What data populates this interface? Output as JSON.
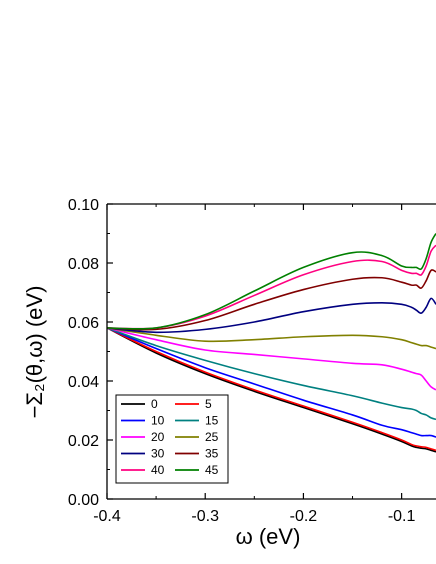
{
  "chart_data": {
    "type": "line",
    "title": "",
    "xlabel": "ω (eV)",
    "ylabel": "−Σ₂(θ,ω) (eV)",
    "xlim": [
      -0.4,
      -0.065
    ],
    "ylim": [
      0.0,
      0.1
    ],
    "xticks": [
      -0.4,
      -0.3,
      -0.2,
      -0.1
    ],
    "xtick_labels": [
      "-0.4",
      "-0.3",
      "-0.2",
      "-0.1"
    ],
    "yticks": [
      0.0,
      0.02,
      0.04,
      0.06,
      0.08,
      0.1
    ],
    "ytick_labels": [
      "0.00",
      "0.02",
      "0.04",
      "0.06",
      "0.08",
      "0.10"
    ],
    "grid": false,
    "legend_position": "bottom-left",
    "x": [
      -0.4,
      -0.35,
      -0.3,
      -0.25,
      -0.2,
      -0.15,
      -0.12,
      -0.1,
      -0.09,
      -0.085,
      -0.08,
      -0.075,
      -0.07,
      -0.065
    ],
    "series": [
      {
        "name": "0",
        "color": "#000000",
        "values": [
          0.058,
          0.0495,
          0.0425,
          0.0365,
          0.031,
          0.0255,
          0.022,
          0.0195,
          0.018,
          0.0175,
          0.0172,
          0.017,
          0.0165,
          0.016
        ]
      },
      {
        "name": "5",
        "color": "#ff0000",
        "values": [
          0.058,
          0.05,
          0.043,
          0.037,
          0.0315,
          0.026,
          0.0225,
          0.02,
          0.0185,
          0.018,
          0.0177,
          0.0175,
          0.017,
          0.0165
        ]
      },
      {
        "name": "10",
        "color": "#0000ff",
        "values": [
          0.058,
          0.051,
          0.0445,
          0.039,
          0.0335,
          0.0285,
          0.025,
          0.0235,
          0.0225,
          0.022,
          0.0215,
          0.0215,
          0.0215,
          0.021
        ]
      },
      {
        "name": "15",
        "color": "#008080",
        "values": [
          0.058,
          0.052,
          0.047,
          0.0425,
          0.0385,
          0.035,
          0.0325,
          0.031,
          0.0305,
          0.03,
          0.029,
          0.0285,
          0.0275,
          0.027
        ]
      },
      {
        "name": "20",
        "color": "#ff00ff",
        "values": [
          0.058,
          0.054,
          0.0505,
          0.049,
          0.0475,
          0.046,
          0.0455,
          0.044,
          0.043,
          0.0425,
          0.042,
          0.04,
          0.038,
          0.037
        ]
      },
      {
        "name": "25",
        "color": "#808000",
        "values": [
          0.058,
          0.0555,
          0.0535,
          0.054,
          0.055,
          0.0555,
          0.055,
          0.054,
          0.053,
          0.0525,
          0.052,
          0.052,
          0.0515,
          0.051
        ]
      },
      {
        "name": "30",
        "color": "#000080",
        "values": [
          0.058,
          0.0565,
          0.0575,
          0.06,
          0.0635,
          0.066,
          0.0665,
          0.066,
          0.065,
          0.064,
          0.063,
          0.065,
          0.068,
          0.066
        ]
      },
      {
        "name": "35",
        "color": "#800000",
        "values": [
          0.058,
          0.0575,
          0.0605,
          0.066,
          0.071,
          0.0745,
          0.075,
          0.0735,
          0.0725,
          0.0725,
          0.0715,
          0.074,
          0.0775,
          0.077
        ]
      },
      {
        "name": "40",
        "color": "#ff0080",
        "values": [
          0.058,
          0.058,
          0.062,
          0.069,
          0.076,
          0.0805,
          0.0805,
          0.0775,
          0.0765,
          0.0765,
          0.076,
          0.079,
          0.084,
          0.086
        ]
      },
      {
        "name": "45",
        "color": "#008000",
        "values": [
          0.058,
          0.058,
          0.0625,
          0.0705,
          0.0785,
          0.0835,
          0.0825,
          0.079,
          0.0785,
          0.0785,
          0.078,
          0.0815,
          0.087,
          0.09
        ]
      }
    ]
  }
}
